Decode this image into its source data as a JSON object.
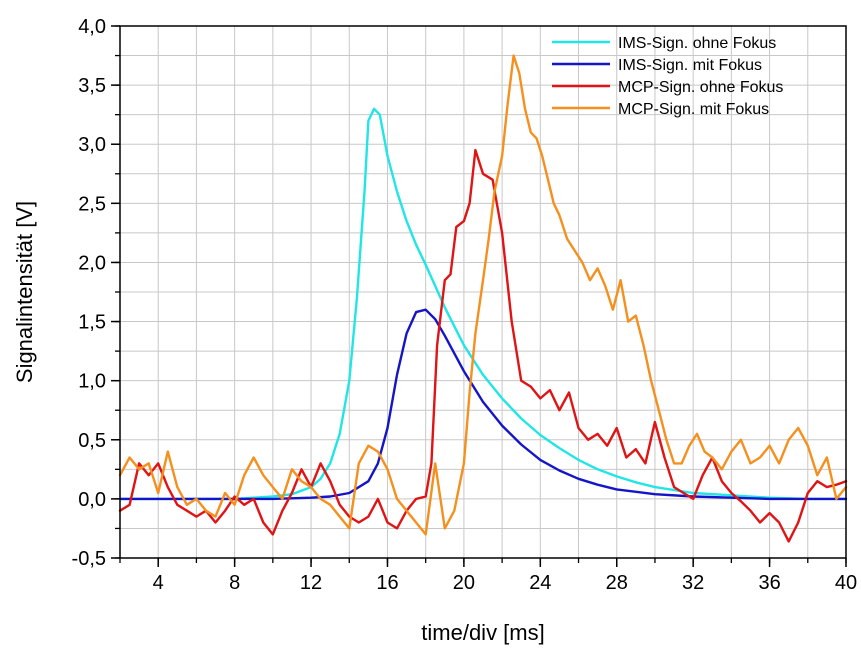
{
  "chart_data": {
    "type": "line",
    "xlabel": "time/div [ms]",
    "ylabel": "Signalintensität [V]",
    "xlim": [
      2,
      40
    ],
    "ylim": [
      -0.5,
      4.0
    ],
    "x_ticks": [
      "4",
      "8",
      "12",
      "16",
      "20",
      "24",
      "28",
      "32",
      "36",
      "40"
    ],
    "x_tick_values": [
      4,
      8,
      12,
      16,
      20,
      24,
      28,
      32,
      36,
      40
    ],
    "y_ticks": [
      "-0,5",
      "0,0",
      "0,5",
      "1,0",
      "1,5",
      "2,0",
      "2,5",
      "3,0",
      "3,5",
      "4,0"
    ],
    "y_tick_values": [
      -0.5,
      0,
      0.5,
      1.0,
      1.5,
      2.0,
      2.5,
      3.0,
      3.5,
      4.0
    ],
    "grid": true,
    "legend_position": "top-right",
    "series": [
      {
        "name": "IMS-Sign. ohne Fokus",
        "color": "#22e5e5",
        "x": [
          2,
          4,
          6,
          8,
          10,
          11,
          12,
          12.5,
          13,
          13.5,
          14,
          14.4,
          14.8,
          15.0,
          15.3,
          15.6,
          16.0,
          16.5,
          17.0,
          17.5,
          18.0,
          19.0,
          20.0,
          21.0,
          22.0,
          23.0,
          24.0,
          25.0,
          26.0,
          27.0,
          28.0,
          29.0,
          30.0,
          32.0,
          34.0,
          36.0,
          38.0,
          40.0
        ],
        "values": [
          0.0,
          0.0,
          0.0,
          0.0,
          0.02,
          0.04,
          0.1,
          0.17,
          0.3,
          0.55,
          1.0,
          1.7,
          2.6,
          3.2,
          3.3,
          3.25,
          2.9,
          2.6,
          2.35,
          2.15,
          1.98,
          1.62,
          1.3,
          1.05,
          0.85,
          0.68,
          0.54,
          0.43,
          0.33,
          0.25,
          0.19,
          0.14,
          0.1,
          0.05,
          0.03,
          0.01,
          0.0,
          0.0
        ]
      },
      {
        "name": "IMS-Sign. mit Fokus",
        "color": "#1414c8",
        "x": [
          2,
          6,
          10,
          12,
          13,
          14,
          15,
          15.5,
          16,
          16.5,
          17.0,
          17.5,
          18.0,
          18.5,
          19.0,
          20.0,
          21.0,
          22.0,
          23.0,
          24.0,
          25.0,
          26.0,
          27.0,
          28.0,
          30.0,
          32.0,
          34.0,
          36.0,
          38.0,
          40.0
        ],
        "values": [
          0.0,
          0.0,
          0.0,
          0.01,
          0.02,
          0.05,
          0.15,
          0.3,
          0.6,
          1.05,
          1.4,
          1.58,
          1.6,
          1.52,
          1.38,
          1.08,
          0.82,
          0.62,
          0.46,
          0.33,
          0.24,
          0.17,
          0.12,
          0.08,
          0.04,
          0.02,
          0.01,
          0.0,
          0.0,
          0.0
        ]
      },
      {
        "name": "MCP-Sign. ohne Fokus",
        "color": "#e01414",
        "x": [
          2,
          2.5,
          3.0,
          3.5,
          4.0,
          4.5,
          5.0,
          5.5,
          6.0,
          6.5,
          7.0,
          7.5,
          8.0,
          8.5,
          9.0,
          9.5,
          10.0,
          10.5,
          11.0,
          11.5,
          12.0,
          12.5,
          13.0,
          13.5,
          14.0,
          14.5,
          15.0,
          15.5,
          16.0,
          16.5,
          17.0,
          17.5,
          18.0,
          18.3,
          18.6,
          19.0,
          19.3,
          19.6,
          20.0,
          20.3,
          20.6,
          21.0,
          21.5,
          22.0,
          22.5,
          23.0,
          23.5,
          24.0,
          24.5,
          25.0,
          25.5,
          26.0,
          26.5,
          27.0,
          27.5,
          28.0,
          28.5,
          29.0,
          29.5,
          30.0,
          30.5,
          31.0,
          31.5,
          32.0,
          32.5,
          33.0,
          33.5,
          34.0,
          34.5,
          35.0,
          35.5,
          36.0,
          36.5,
          37.0,
          37.5,
          38.0,
          38.5,
          39.0,
          39.5,
          40.0
        ],
        "values": [
          -0.1,
          -0.05,
          0.3,
          0.2,
          0.3,
          0.1,
          -0.05,
          -0.1,
          -0.15,
          -0.1,
          -0.2,
          -0.1,
          0.02,
          -0.05,
          0.0,
          -0.2,
          -0.3,
          -0.1,
          0.05,
          0.25,
          0.1,
          0.3,
          0.15,
          -0.05,
          -0.15,
          -0.2,
          -0.15,
          0.0,
          -0.2,
          -0.25,
          -0.1,
          0.0,
          0.02,
          0.3,
          1.3,
          1.85,
          1.9,
          2.3,
          2.35,
          2.5,
          2.95,
          2.75,
          2.7,
          2.25,
          1.5,
          1.0,
          0.95,
          0.85,
          0.92,
          0.75,
          0.9,
          0.6,
          0.5,
          0.55,
          0.45,
          0.6,
          0.35,
          0.42,
          0.3,
          0.65,
          0.35,
          0.1,
          0.05,
          0.0,
          0.2,
          0.35,
          0.15,
          0.05,
          -0.02,
          -0.1,
          -0.2,
          -0.12,
          -0.2,
          -0.36,
          -0.2,
          0.05,
          0.15,
          0.1,
          0.12,
          0.15
        ]
      },
      {
        "name": "MCP-Sign. mit Fokus",
        "color": "#f5901e",
        "x": [
          2,
          2.5,
          3.0,
          3.5,
          4.0,
          4.5,
          5.0,
          5.5,
          6.0,
          6.5,
          7.0,
          7.5,
          8.0,
          8.5,
          9.0,
          9.5,
          10.0,
          10.5,
          11.0,
          11.5,
          12.0,
          12.5,
          13.0,
          13.5,
          14.0,
          14.5,
          15.0,
          15.5,
          16.0,
          16.5,
          17.0,
          17.5,
          18.0,
          18.5,
          19.0,
          19.5,
          20.0,
          20.3,
          20.6,
          21.0,
          21.3,
          21.6,
          22.0,
          22.3,
          22.6,
          22.9,
          23.2,
          23.5,
          23.8,
          24.1,
          24.4,
          24.7,
          25.0,
          25.4,
          25.8,
          26.2,
          26.6,
          27.0,
          27.4,
          27.8,
          28.2,
          28.6,
          29.0,
          29.4,
          29.8,
          30.2,
          30.6,
          31.0,
          31.4,
          31.8,
          32.2,
          32.6,
          33.0,
          33.5,
          34.0,
          34.5,
          35.0,
          35.5,
          36.0,
          36.5,
          37.0,
          37.5,
          38.0,
          38.5,
          39.0,
          39.5,
          40.0
        ],
        "values": [
          0.2,
          0.35,
          0.25,
          0.3,
          0.05,
          0.4,
          0.1,
          -0.05,
          0.0,
          -0.1,
          -0.15,
          0.05,
          -0.05,
          0.2,
          0.35,
          0.2,
          0.1,
          0.0,
          0.25,
          0.15,
          0.1,
          0.0,
          -0.05,
          -0.15,
          -0.25,
          0.3,
          0.45,
          0.4,
          0.25,
          0.0,
          -0.1,
          -0.2,
          -0.3,
          0.3,
          -0.25,
          -0.1,
          0.3,
          0.9,
          1.4,
          1.85,
          2.2,
          2.6,
          2.9,
          3.35,
          3.75,
          3.6,
          3.3,
          3.1,
          3.05,
          2.9,
          2.7,
          2.5,
          2.4,
          2.2,
          2.1,
          2.0,
          1.85,
          1.95,
          1.8,
          1.6,
          1.85,
          1.5,
          1.55,
          1.3,
          1.0,
          0.75,
          0.5,
          0.3,
          0.3,
          0.45,
          0.55,
          0.4,
          0.35,
          0.25,
          0.4,
          0.5,
          0.3,
          0.35,
          0.45,
          0.3,
          0.5,
          0.6,
          0.45,
          0.2,
          0.35,
          0.0,
          0.1
        ]
      }
    ]
  }
}
